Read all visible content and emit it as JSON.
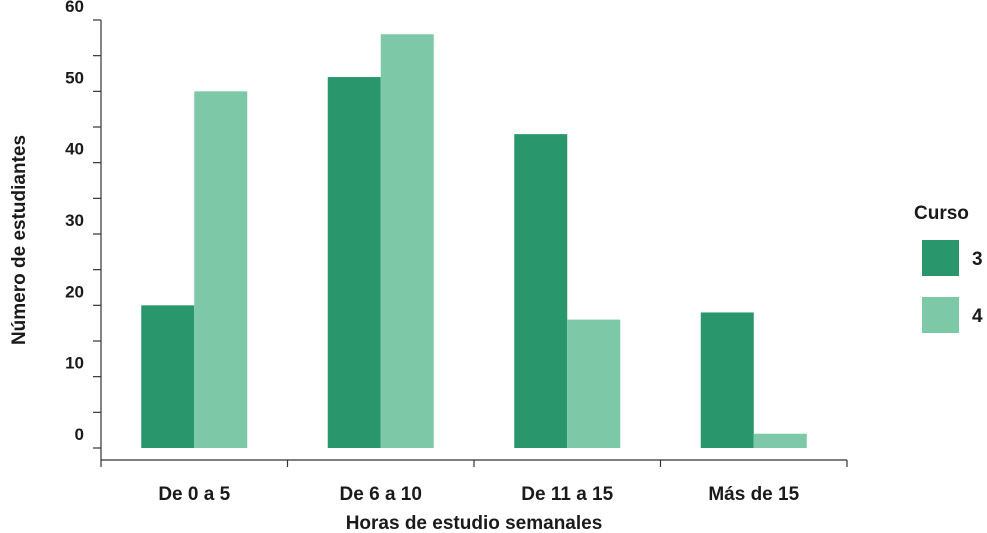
{
  "chart_data": {
    "type": "bar",
    "xlabel": "Horas de estudio semanales",
    "ylabel": "Número de estudiantes",
    "categories": [
      "De 0 a 5",
      "De 6 a 10",
      "De 11 a 15",
      "Más de 15"
    ],
    "series": [
      {
        "name": "3",
        "values": [
          20,
          52,
          44,
          19
        ],
        "color": "#2a966b"
      },
      {
        "name": "4",
        "values": [
          50,
          58,
          18,
          2
        ],
        "color": "#7dc9a7"
      }
    ],
    "ylim": [
      0,
      60
    ],
    "yticks": [
      0,
      10,
      20,
      30,
      40,
      50,
      60
    ],
    "legend": {
      "title": "Curso",
      "placement": "right"
    },
    "grid": false
  }
}
